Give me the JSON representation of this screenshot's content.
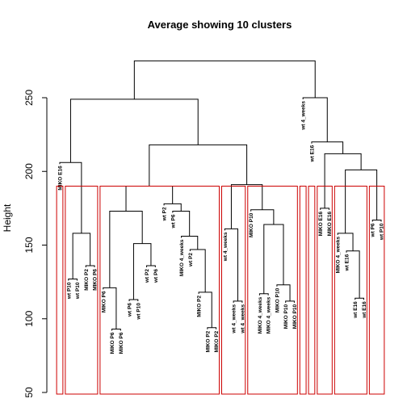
{
  "chart_data": {
    "type": "dendrogram",
    "title": "Average showing 10 clusters",
    "ylabel": "Height",
    "ylim": [
      50,
      282
    ],
    "yticks": [
      50,
      100,
      150,
      200,
      250
    ],
    "rect_colors": "#cc0000",
    "leaves": [
      "MIKO E16",
      "wt P10",
      "wt P10",
      "MIKO P2",
      "MIKO P6",
      "MIKO P6",
      "MIKO P6",
      "MIKO P6",
      "wt P6",
      "wt P10",
      "wt P2",
      "wt P6",
      "wt P2",
      "wt P6",
      "MIKO 4_weeks",
      "wt P2",
      "MIKO P2",
      "MIKO P2",
      "MIKO P2",
      "wt 4_weeks",
      "wt 4_weeks",
      "wt 4_weeks",
      "MIKO P10",
      "MIKO 4_weeks",
      "MIKO 4_weeks",
      "MIKO P10",
      "MIKO P10",
      "MIKO P10",
      "wt 4_weeks",
      "wt E16",
      "MIKO E16",
      "MIKO E16",
      "MIKO 4_weeks",
      "wt E16",
      "wt E16",
      "wt E16",
      "wt P6",
      "wt P10"
    ],
    "merges": [
      {
        "id": "m1",
        "a": "L1",
        "b": "L2",
        "h": 127
      },
      {
        "id": "m2",
        "a": "L3",
        "b": "L4",
        "h": 136
      },
      {
        "id": "m3",
        "a": "m1",
        "b": "m2",
        "h": 158
      },
      {
        "id": "m4",
        "a": "L0",
        "b": "m3",
        "h": 206
      },
      {
        "id": "m5",
        "a": "L6",
        "b": "L7",
        "h": 93
      },
      {
        "id": "m6",
        "a": "L5",
        "b": "m5",
        "h": 121
      },
      {
        "id": "m7",
        "a": "L8",
        "b": "L9",
        "h": 113
      },
      {
        "id": "m8",
        "a": "L10",
        "b": "L11",
        "h": 136
      },
      {
        "id": "m9",
        "a": "m7",
        "b": "m8",
        "h": 151
      },
      {
        "id": "m10",
        "a": "m6",
        "b": "m9",
        "h": 173
      },
      {
        "id": "m11",
        "a": "L17",
        "b": "L18",
        "h": 94
      },
      {
        "id": "m12",
        "a": "L16",
        "b": "m11",
        "h": 118
      },
      {
        "id": "m13",
        "a": "L15",
        "b": "m12",
        "h": 147
      },
      {
        "id": "m14",
        "a": "L14",
        "b": "m13",
        "h": 156
      },
      {
        "id": "m15",
        "a": "L13",
        "b": "m14",
        "h": 173
      },
      {
        "id": "m16",
        "a": "L12",
        "b": "m15",
        "h": 178
      },
      {
        "id": "m17",
        "a": "m10",
        "b": "m16",
        "h": 190
      },
      {
        "id": "m18",
        "a": "L20",
        "b": "L21",
        "h": 112
      },
      {
        "id": "m19",
        "a": "L19",
        "b": "m18",
        "h": 161
      },
      {
        "id": "m20",
        "a": "L23",
        "b": "L24",
        "h": 117
      },
      {
        "id": "m21",
        "a": "L26",
        "b": "L27",
        "h": 112
      },
      {
        "id": "m22",
        "a": "L25",
        "b": "m21",
        "h": 123
      },
      {
        "id": "m23",
        "a": "m20",
        "b": "m22",
        "h": 164
      },
      {
        "id": "m24",
        "a": "L22",
        "b": "m23",
        "h": 174
      },
      {
        "id": "m25",
        "a": "m19",
        "b": "m24",
        "h": 191
      },
      {
        "id": "m26",
        "a": "m17",
        "b": "m25",
        "h": 218
      },
      {
        "id": "m27",
        "a": "m4",
        "b": "m26",
        "h": 249
      },
      {
        "id": "m28",
        "a": "L30",
        "b": "L31",
        "h": 175
      },
      {
        "id": "m29",
        "a": "L34",
        "b": "L35",
        "h": 114
      },
      {
        "id": "m30",
        "a": "L33",
        "b": "m29",
        "h": 146
      },
      {
        "id": "m31",
        "a": "L32",
        "b": "m30",
        "h": 158
      },
      {
        "id": "m32",
        "a": "L36",
        "b": "L37",
        "h": 167
      },
      {
        "id": "m33",
        "a": "m31",
        "b": "m32",
        "h": 201
      },
      {
        "id": "m34",
        "a": "m28",
        "b": "m33",
        "h": 212
      },
      {
        "id": "m35",
        "a": "L29",
        "b": "m34",
        "h": 220
      },
      {
        "id": "m36",
        "a": "L28",
        "b": "m35",
        "h": 250
      },
      {
        "id": "m37",
        "a": "m27",
        "b": "m36",
        "h": 275
      }
    ],
    "clusters": [
      {
        "from": 0,
        "to": 0
      },
      {
        "from": 1,
        "to": 4
      },
      {
        "from": 5,
        "to": 18
      },
      {
        "from": 19,
        "to": 21
      },
      {
        "from": 22,
        "to": 27
      },
      {
        "from": 28,
        "to": 28
      },
      {
        "from": 29,
        "to": 29
      },
      {
        "from": 30,
        "to": 31
      },
      {
        "from": 32,
        "to": 35
      },
      {
        "from": 36,
        "to": 37
      }
    ]
  }
}
